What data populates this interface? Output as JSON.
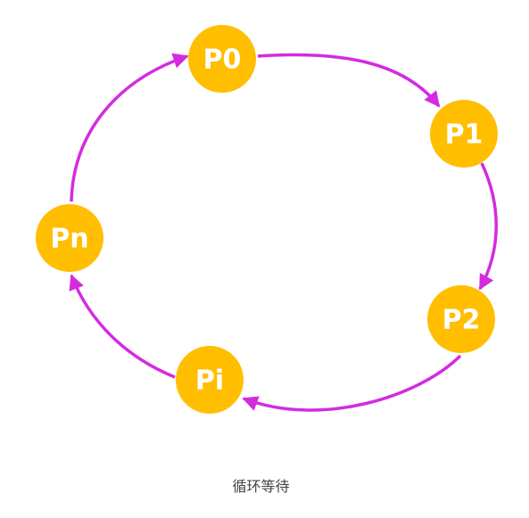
{
  "caption": "循环等待",
  "nodes": [
    {
      "id": "p0",
      "label": "P0"
    },
    {
      "id": "p1",
      "label": "P1"
    },
    {
      "id": "p2",
      "label": "P2"
    },
    {
      "id": "pi",
      "label": "Pi"
    },
    {
      "id": "pn",
      "label": "Pn"
    }
  ],
  "edges": [
    {
      "from": "p0",
      "to": "p1"
    },
    {
      "from": "p1",
      "to": "p2"
    },
    {
      "from": "p2",
      "to": "pi"
    },
    {
      "from": "pi",
      "to": "pn"
    },
    {
      "from": "pn",
      "to": "p0"
    }
  ],
  "colors": {
    "node_fill": "#FFBF00",
    "node_text": "#FFFFFF",
    "edge": "#D42BE0"
  }
}
